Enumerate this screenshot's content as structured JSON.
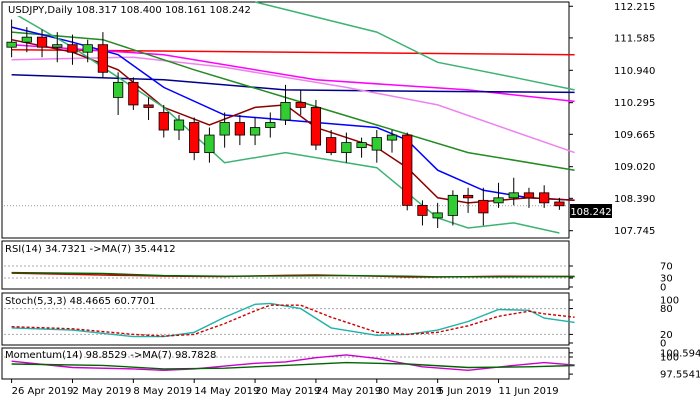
{
  "chart_data": [
    {
      "type": "candlestick",
      "title": "USDJPY,Daily  108.317 108.400 108.161 108.242",
      "current_price": "108.242",
      "ylim": [
        107.6,
        112.3
      ],
      "y_ticks": [
        "112.215",
        "111.585",
        "110.940",
        "110.295",
        "109.665",
        "109.020",
        "108.390",
        "107.745"
      ],
      "x_ticks": [
        {
          "label": "26 Apr 2019",
          "index": 0
        },
        {
          "label": "2 May 2019",
          "index": 4
        },
        {
          "label": "8 May 2019",
          "index": 8
        },
        {
          "label": "14 May 2019",
          "index": 12
        },
        {
          "label": "20 May 2019",
          "index": 16
        },
        {
          "label": "24 May 2019",
          "index": 20
        },
        {
          "label": "30 May 2019",
          "index": 24
        },
        {
          "label": "5 Jun 2019",
          "index": 28
        },
        {
          "label": "11 Jun 2019",
          "index": 32
        }
      ],
      "candles": [
        {
          "o": 111.4,
          "h": 111.95,
          "l": 111.2,
          "c": 111.5
        },
        {
          "o": 111.5,
          "h": 111.8,
          "l": 111.3,
          "c": 111.6
        },
        {
          "o": 111.6,
          "h": 111.75,
          "l": 111.2,
          "c": 111.4
        },
        {
          "o": 111.4,
          "h": 111.7,
          "l": 111.1,
          "c": 111.45
        },
        {
          "o": 111.45,
          "h": 111.65,
          "l": 111.05,
          "c": 111.3
        },
        {
          "o": 111.3,
          "h": 111.55,
          "l": 111.1,
          "c": 111.45
        },
        {
          "o": 111.45,
          "h": 111.7,
          "l": 110.8,
          "c": 110.9
        },
        {
          "o": 110.4,
          "h": 110.9,
          "l": 110.05,
          "c": 110.7
        },
        {
          "o": 110.7,
          "h": 110.8,
          "l": 110.15,
          "c": 110.25
        },
        {
          "o": 110.25,
          "h": 110.4,
          "l": 109.95,
          "c": 110.2
        },
        {
          "o": 110.1,
          "h": 110.25,
          "l": 109.6,
          "c": 109.75
        },
        {
          "o": 109.75,
          "h": 110.05,
          "l": 109.55,
          "c": 109.95
        },
        {
          "o": 109.9,
          "h": 110.0,
          "l": 109.15,
          "c": 109.3
        },
        {
          "o": 109.3,
          "h": 109.8,
          "l": 109.1,
          "c": 109.65
        },
        {
          "o": 109.65,
          "h": 110.1,
          "l": 109.4,
          "c": 109.9
        },
        {
          "o": 109.9,
          "h": 110.05,
          "l": 109.45,
          "c": 109.65
        },
        {
          "o": 109.65,
          "h": 110.0,
          "l": 109.45,
          "c": 109.8
        },
        {
          "o": 109.8,
          "h": 110.1,
          "l": 109.6,
          "c": 109.9
        },
        {
          "o": 109.95,
          "h": 110.65,
          "l": 109.85,
          "c": 110.3
        },
        {
          "o": 110.3,
          "h": 110.55,
          "l": 110.05,
          "c": 110.2
        },
        {
          "o": 110.2,
          "h": 110.35,
          "l": 109.35,
          "c": 109.45
        },
        {
          "o": 109.6,
          "h": 109.75,
          "l": 109.25,
          "c": 109.3
        },
        {
          "o": 109.3,
          "h": 109.7,
          "l": 109.1,
          "c": 109.5
        },
        {
          "o": 109.4,
          "h": 109.6,
          "l": 109.2,
          "c": 109.5
        },
        {
          "o": 109.35,
          "h": 109.75,
          "l": 109.1,
          "c": 109.6
        },
        {
          "o": 109.55,
          "h": 109.75,
          "l": 109.3,
          "c": 109.65
        },
        {
          "o": 109.65,
          "h": 109.7,
          "l": 108.15,
          "c": 108.25
        },
        {
          "o": 108.25,
          "h": 108.35,
          "l": 107.85,
          "c": 108.05
        },
        {
          "o": 108.0,
          "h": 108.3,
          "l": 107.8,
          "c": 108.1
        },
        {
          "o": 108.05,
          "h": 108.55,
          "l": 107.85,
          "c": 108.45
        },
        {
          "o": 108.45,
          "h": 108.6,
          "l": 108.1,
          "c": 108.4
        },
        {
          "o": 108.35,
          "h": 108.6,
          "l": 107.85,
          "c": 108.1
        },
        {
          "o": 108.3,
          "h": 108.7,
          "l": 108.2,
          "c": 108.4
        },
        {
          "o": 108.4,
          "h": 108.8,
          "l": 108.25,
          "c": 108.5
        },
        {
          "o": 108.5,
          "h": 108.6,
          "l": 108.2,
          "c": 108.4
        },
        {
          "o": 108.5,
          "h": 108.65,
          "l": 108.2,
          "c": 108.3
        },
        {
          "o": 108.317,
          "h": 108.4,
          "l": 108.161,
          "c": 108.242
        }
      ],
      "overlays": [
        {
          "color": "#ff0000",
          "values": [
            [
              0,
              111.35
            ],
            [
              37,
              111.25
            ]
          ]
        },
        {
          "color": "#ff00ff",
          "values": [
            [
              0,
              111.45
            ],
            [
              10,
              111.25
            ],
            [
              20,
              110.75
            ],
            [
              30,
              110.55
            ],
            [
              37,
              110.32
            ]
          ]
        },
        {
          "color": "#00008b",
          "values": [
            [
              0,
              110.85
            ],
            [
              10,
              110.75
            ],
            [
              18,
              110.55
            ],
            [
              28,
              110.52
            ],
            [
              37,
              110.5
            ]
          ]
        },
        {
          "color": "#ee82ee",
          "values": [
            [
              0,
              111.15
            ],
            [
              8,
              111.2
            ],
            [
              14,
              111.0
            ],
            [
              22,
              110.6
            ],
            [
              28,
              110.25
            ],
            [
              37,
              109.3
            ]
          ]
        },
        {
          "color": "#228b22",
          "values": [
            [
              0,
              111.7
            ],
            [
              6,
              111.55
            ],
            [
              12,
              110.95
            ],
            [
              18,
              110.4
            ],
            [
              24,
              109.85
            ],
            [
              30,
              109.3
            ],
            [
              37,
              108.95
            ]
          ]
        },
        {
          "color": "#0000ff",
          "values": [
            [
              0,
              111.8
            ],
            [
              4,
              111.5
            ],
            [
              7,
              111.25
            ],
            [
              10,
              110.6
            ],
            [
              14,
              110.05
            ],
            [
              18,
              109.95
            ],
            [
              24,
              109.8
            ],
            [
              26,
              109.55
            ],
            [
              28,
              108.95
            ],
            [
              31,
              108.55
            ],
            [
              34,
              108.4
            ],
            [
              37,
              108.35
            ]
          ]
        },
        {
          "color": "#8b0000",
          "values": [
            [
              0,
              111.55
            ],
            [
              4,
              111.3
            ],
            [
              7,
              110.95
            ],
            [
              10,
              110.2
            ],
            [
              13,
              109.85
            ],
            [
              16,
              110.2
            ],
            [
              18,
              110.25
            ],
            [
              20,
              109.8
            ],
            [
              24,
              109.4
            ],
            [
              26,
              109.0
            ],
            [
              28,
              108.4
            ],
            [
              30,
              108.3
            ],
            [
              34,
              108.4
            ],
            [
              37,
              108.35
            ]
          ]
        },
        {
          "color": "#3cb371",
          "values": [
            [
              0,
              112.1
            ],
            [
              4,
              111.4
            ],
            [
              10,
              110.2
            ],
            [
              14,
              109.1
            ],
            [
              18,
              109.3
            ],
            [
              24,
              109.0
            ],
            [
              28,
              108.0
            ],
            [
              30,
              107.8
            ],
            [
              33,
              107.9
            ],
            [
              36,
              107.7
            ]
          ]
        },
        {
          "color": "#3cb371",
          "values": [
            [
              16,
              112.3
            ],
            [
              18,
              112.15
            ],
            [
              24,
              111.7
            ],
            [
              28,
              111.1
            ],
            [
              33,
              110.8
            ],
            [
              37,
              110.55
            ]
          ]
        }
      ]
    },
    {
      "type": "line",
      "title": "RSI(14) 34.7321  ->MA(7) 35.4412",
      "ylim": [
        0,
        100
      ],
      "y_ticks": [
        "70",
        "30",
        "0"
      ],
      "levels": [
        70,
        30
      ],
      "series": [
        {
          "color": "#cc0000",
          "values": [
            [
              0,
              46
            ],
            [
              6,
              40
            ],
            [
              10,
              36
            ],
            [
              14,
              35
            ],
            [
              18,
              39
            ],
            [
              20,
              40
            ],
            [
              24,
              36
            ],
            [
              26,
              33
            ],
            [
              28,
              33
            ],
            [
              32,
              36
            ],
            [
              37,
              35
            ]
          ]
        },
        {
          "color": "#006400",
          "values": [
            [
              0,
              48
            ],
            [
              6,
              45
            ],
            [
              10,
              38
            ],
            [
              14,
              36
            ],
            [
              18,
              37
            ],
            [
              22,
              38
            ],
            [
              26,
              36
            ],
            [
              28,
              34
            ],
            [
              32,
              34
            ],
            [
              37,
              35
            ]
          ]
        }
      ]
    },
    {
      "type": "line",
      "title": "Stoch(5,3,3) 48.4665 60.7701",
      "ylim": [
        0,
        100
      ],
      "y_ticks": [
        "100",
        "80",
        "20",
        "0"
      ],
      "levels": [
        80,
        20
      ],
      "series": [
        {
          "color": "#20b2aa",
          "values": [
            [
              0,
              35
            ],
            [
              4,
              30
            ],
            [
              8,
              15
            ],
            [
              10,
              15
            ],
            [
              12,
              25
            ],
            [
              14,
              60
            ],
            [
              16,
              90
            ],
            [
              17,
              92
            ],
            [
              19,
              80
            ],
            [
              21,
              35
            ],
            [
              24,
              18
            ],
            [
              26,
              20
            ],
            [
              28,
              30
            ],
            [
              30,
              50
            ],
            [
              32,
              78
            ],
            [
              34,
              76
            ],
            [
              35,
              58
            ],
            [
              37,
              48
            ]
          ]
        },
        {
          "color": "#cc0000",
          "dashed": true,
          "values": [
            [
              0,
              38
            ],
            [
              4,
              33
            ],
            [
              8,
              20
            ],
            [
              10,
              16
            ],
            [
              12,
              20
            ],
            [
              14,
              45
            ],
            [
              16,
              75
            ],
            [
              17,
              88
            ],
            [
              19,
              88
            ],
            [
              21,
              60
            ],
            [
              24,
              25
            ],
            [
              26,
              20
            ],
            [
              28,
              25
            ],
            [
              30,
              40
            ],
            [
              32,
              62
            ],
            [
              34,
              74
            ],
            [
              35,
              68
            ],
            [
              37,
              60
            ]
          ]
        }
      ]
    },
    {
      "type": "line",
      "title": "Momentum(14) 98.8529  ->MA(7) 98.7828",
      "ylim": [
        97.0,
        101.0
      ],
      "y_ticks": [
        "100.5944",
        "100",
        "97.5541"
      ],
      "levels": [
        100
      ],
      "series": [
        {
          "color": "#cc00cc",
          "values": [
            [
              0,
              99.4
            ],
            [
              4,
              98.5
            ],
            [
              8,
              98.3
            ],
            [
              10,
              98.1
            ],
            [
              12,
              98.3
            ],
            [
              14,
              98.7
            ],
            [
              16,
              99.1
            ],
            [
              18,
              99.3
            ],
            [
              20,
              99.9
            ],
            [
              22,
              100.3
            ],
            [
              24,
              99.8
            ],
            [
              27,
              98.6
            ],
            [
              30,
              98.1
            ],
            [
              33,
              98.8
            ],
            [
              35,
              99.2
            ],
            [
              37,
              98.85
            ]
          ]
        },
        {
          "color": "#006400",
          "values": [
            [
              0,
              99.0
            ],
            [
              6,
              98.8
            ],
            [
              10,
              98.3
            ],
            [
              14,
              98.4
            ],
            [
              18,
              98.8
            ],
            [
              22,
              99.2
            ],
            [
              26,
              99.0
            ],
            [
              30,
              98.5
            ],
            [
              34,
              98.6
            ],
            [
              37,
              98.78
            ]
          ]
        }
      ]
    }
  ]
}
